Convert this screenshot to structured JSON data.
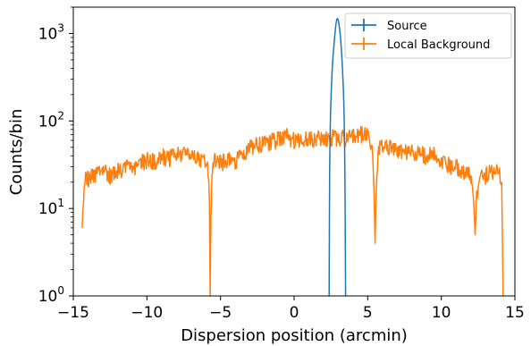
{
  "chart_data": {
    "type": "line",
    "title": "",
    "xlabel": "Dispersion position (arcmin)",
    "ylabel": "Counts/bin",
    "xlim": [
      -15,
      15
    ],
    "ylim": [
      1,
      2000
    ],
    "yscale": "log",
    "x_ticks": [
      -15,
      -10,
      -5,
      0,
      5,
      10,
      15
    ],
    "x_tick_labels": [
      "−15",
      "−10",
      "−5",
      "0",
      "5",
      "10",
      "15"
    ],
    "y_ticks": [
      {
        "value": 1,
        "base": "10",
        "exp": "0"
      },
      {
        "value": 10,
        "base": "10",
        "exp": "1"
      },
      {
        "value": 100,
        "base": "10",
        "exp": "2"
      },
      {
        "value": 1000,
        "base": "10",
        "exp": "3"
      }
    ],
    "grid": false,
    "legend_position": "top-right",
    "series": [
      {
        "name": "Source",
        "color": "#1f77b4",
        "x": [
          2.38,
          2.4,
          2.42,
          2.45,
          2.48,
          2.52,
          2.56,
          2.6,
          2.65,
          2.7,
          2.75,
          2.8,
          2.85,
          2.9,
          2.95,
          3.0,
          3.05,
          3.1,
          3.15,
          3.2,
          3.25,
          3.3,
          3.35,
          3.4,
          3.43,
          3.46,
          3.48,
          3.5
        ],
        "y": [
          1,
          8,
          30,
          70,
          130,
          210,
          310,
          420,
          560,
          720,
          900,
          1100,
          1300,
          1460,
          1480,
          1420,
          1280,
          1100,
          900,
          700,
          520,
          360,
          220,
          110,
          50,
          15,
          4,
          1
        ]
      },
      {
        "name": "Local Background",
        "color": "#ff7f0e",
        "x": [
          -14.4,
          -14.3,
          -14.2,
          -14.0,
          -13.5,
          -13.0,
          -12.5,
          -12.0,
          -11.5,
          -11.0,
          -10.5,
          -10.0,
          -9.5,
          -9.0,
          -8.5,
          -8.0,
          -7.5,
          -7.0,
          -6.5,
          -6.0,
          -5.85,
          -5.75,
          -5.7,
          -5.65,
          -5.55,
          -5.4,
          -5.0,
          -4.5,
          -4.0,
          -3.5,
          -3.0,
          -2.5,
          -2.0,
          -1.5,
          -1.0,
          -0.5,
          0.0,
          0.5,
          1.0,
          1.5,
          2.0,
          2.5,
          3.0,
          3.5,
          4.0,
          4.5,
          5.0,
          5.3,
          5.45,
          5.5,
          5.55,
          5.7,
          6.0,
          6.5,
          7.0,
          7.5,
          8.0,
          8.5,
          9.0,
          9.5,
          10.0,
          10.5,
          11.0,
          11.5,
          12.0,
          12.2,
          12.3,
          12.4,
          12.6,
          13.0,
          13.5,
          14.0,
          14.1,
          14.15,
          14.2
        ],
        "y": [
          6,
          15,
          26,
          22,
          25,
          28,
          24,
          27,
          30,
          28,
          33,
          36,
          35,
          40,
          38,
          42,
          44,
          40,
          38,
          34,
          30,
          12,
          1,
          10,
          28,
          36,
          34,
          36,
          35,
          42,
          50,
          55,
          56,
          60,
          62,
          67,
          60,
          58,
          66,
          63,
          64,
          65,
          66,
          64,
          68,
          72,
          70,
          50,
          12,
          4,
          12,
          45,
          56,
          52,
          48,
          46,
          45,
          44,
          40,
          42,
          36,
          32,
          30,
          28,
          24,
          12,
          5,
          14,
          26,
          24,
          27,
          25,
          20,
          5,
          1
        ]
      }
    ]
  }
}
